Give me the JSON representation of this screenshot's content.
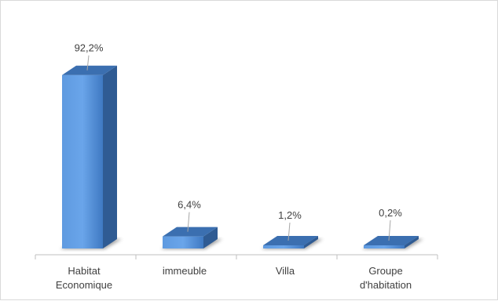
{
  "chart_data": {
    "type": "bar",
    "categories": [
      [
        "Habitat",
        "Economique"
      ],
      [
        "immeuble"
      ],
      [
        "Villa"
      ],
      [
        "Groupe",
        "d'habitation"
      ]
    ],
    "values": [
      92.2,
      6.4,
      1.2,
      0.2
    ],
    "data_labels": [
      "92,2%",
      "6,4%",
      "1,2%",
      "0,2%"
    ],
    "unit": "%",
    "ylim": [
      0,
      100
    ],
    "grid": false,
    "legend": "none",
    "style": "3d-column",
    "colors": {
      "bar_front": "#4a86d4",
      "bar_top": "#3b6fb0",
      "bar_side": "#2f5b93",
      "axis": "#bfbfbf",
      "text": "#404040"
    }
  }
}
